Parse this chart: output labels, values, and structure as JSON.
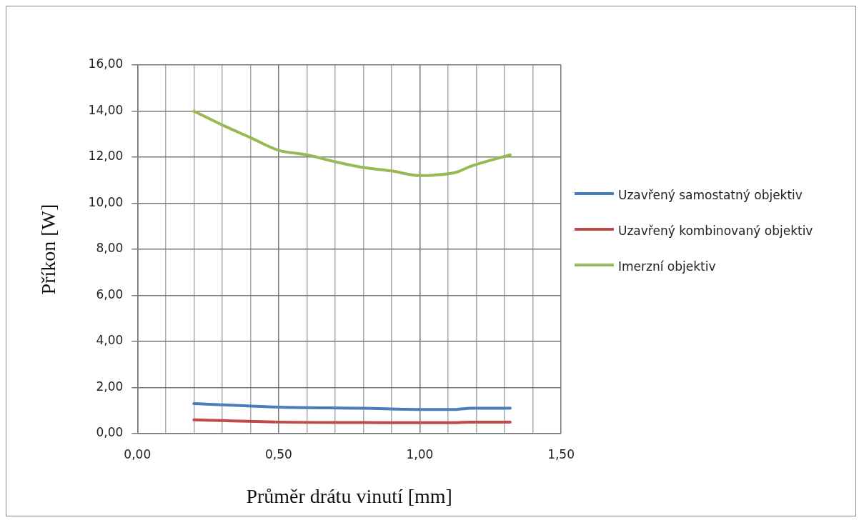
{
  "chart_data": {
    "type": "line",
    "xlabel": "Průměr drátu vinutí [mm]",
    "ylabel": "Příkon [W]",
    "xlim": [
      0,
      1.5
    ],
    "xticks": [
      {
        "value": 0,
        "label": "0,00"
      },
      {
        "value": 0.1,
        "label": null
      },
      {
        "value": 0.2,
        "label": null
      },
      {
        "value": 0.3,
        "label": null
      },
      {
        "value": 0.4,
        "label": null
      },
      {
        "value": 0.5,
        "label": "0,50"
      },
      {
        "value": 0.6,
        "label": null
      },
      {
        "value": 0.7,
        "label": null
      },
      {
        "value": 0.8,
        "label": null
      },
      {
        "value": 0.9,
        "label": null
      },
      {
        "value": 1,
        "label": "1,00"
      },
      {
        "value": 1.1,
        "label": null
      },
      {
        "value": 1.2,
        "label": null
      },
      {
        "value": 1.3,
        "label": null
      },
      {
        "value": 1.4,
        "label": null
      },
      {
        "value": 1.5,
        "label": "1,50"
      }
    ],
    "ylim": [
      0,
      16
    ],
    "yticks": [
      {
        "value": 0,
        "label": "0,00"
      },
      {
        "value": 2,
        "label": "2,00"
      },
      {
        "value": 4,
        "label": "4,00"
      },
      {
        "value": 6,
        "label": "6,00"
      },
      {
        "value": 8,
        "label": "8,00"
      },
      {
        "value": 10,
        "label": "10,00"
      },
      {
        "value": 12,
        "label": "12,00"
      },
      {
        "value": 14,
        "label": "14,00"
      },
      {
        "value": 16,
        "label": "16,00"
      }
    ],
    "grid": true,
    "legend": "right",
    "marker": "none",
    "line_style": "solid",
    "series": [
      {
        "name": "Uzavřený samostatný objektiv",
        "color": "#4a7ebb",
        "x": [
          0.2,
          0.5,
          0.8,
          1.0,
          1.13,
          1.18,
          1.32
        ],
        "values": [
          1.3,
          1.15,
          1.1,
          1.05,
          1.05,
          1.1,
          1.1
        ]
      },
      {
        "name": "Uzavřený kombinovaný objektiv",
        "color": "#be4b48",
        "x": [
          0.2,
          0.5,
          0.8,
          1.0,
          1.13,
          1.18,
          1.32
        ],
        "values": [
          0.6,
          0.5,
          0.48,
          0.47,
          0.47,
          0.5,
          0.5
        ]
      },
      {
        "name": "Imerzní objektiv",
        "color": "#98b954",
        "x": [
          0.2,
          0.3,
          0.4,
          0.5,
          0.6,
          0.7,
          0.8,
          0.9,
          1.0,
          1.05,
          1.13,
          1.18,
          1.32
        ],
        "values": [
          14.0,
          13.4,
          12.85,
          12.3,
          12.1,
          11.8,
          11.55,
          11.4,
          11.2,
          11.22,
          11.35,
          11.6,
          12.1
        ]
      }
    ]
  }
}
